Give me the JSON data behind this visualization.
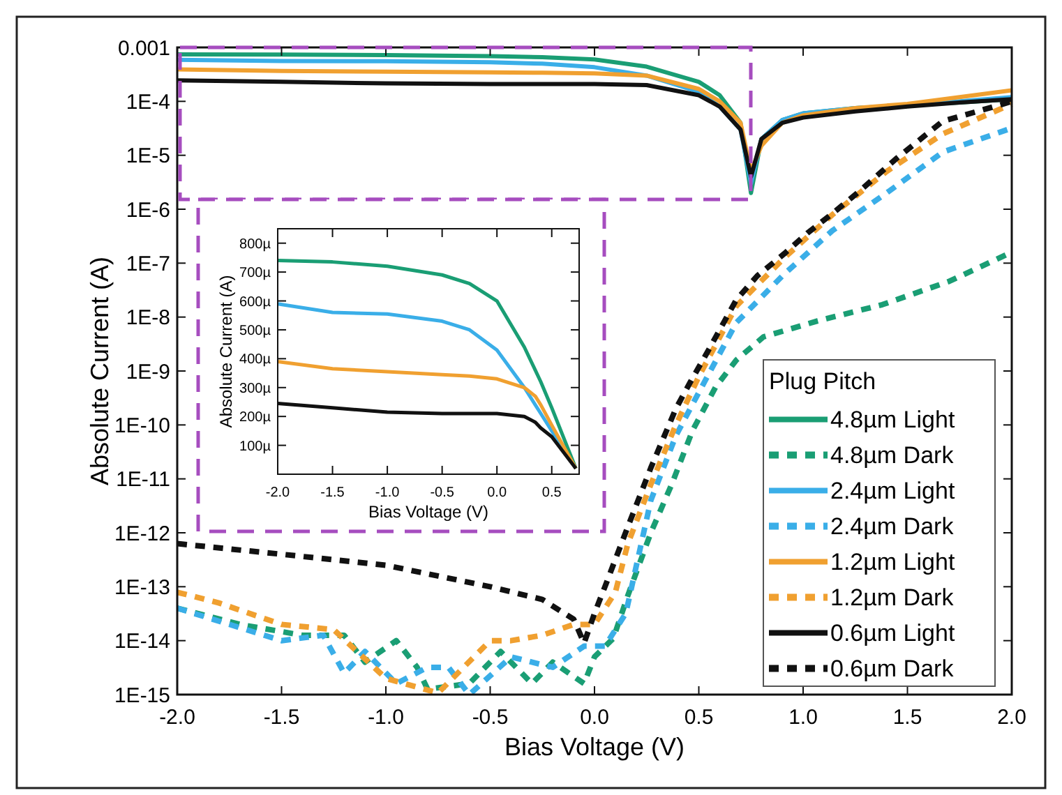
{
  "chart_data": [
    {
      "type": "line",
      "xlabel": "Bias Voltage (V)",
      "ylabel": "Absolute Current (A)",
      "log": "y",
      "legend": "bottom right",
      "legend_title": "Plug Pitch",
      "grid": false,
      "xlim": [
        -2,
        2
      ],
      "xticks": [
        {
          "value": -2,
          "label": "-2.0"
        },
        {
          "value": -1.5,
          "label": "-1.5"
        },
        {
          "value": -1,
          "label": "-1.0"
        },
        {
          "value": -0.5,
          "label": "-0.5"
        },
        {
          "value": 0,
          "label": "0.0"
        },
        {
          "value": 0.5,
          "label": "0.5"
        },
        {
          "value": 1,
          "label": "1.0"
        },
        {
          "value": 1.5,
          "label": "1.5"
        },
        {
          "value": 2,
          "label": "2.0"
        }
      ],
      "ylim": [
        1e-15,
        0.001
      ],
      "yticks": [
        {
          "value": 1e-15,
          "label": "1E-15"
        },
        {
          "value": 1e-14,
          "label": "1E-14"
        },
        {
          "value": 1e-13,
          "label": "1E-13"
        },
        {
          "value": 1e-12,
          "label": "1E-12"
        },
        {
          "value": 1e-11,
          "label": "1E-11"
        },
        {
          "value": 1e-10,
          "label": "1E-10"
        },
        {
          "value": 1e-09,
          "label": "1E-9"
        },
        {
          "value": 1e-08,
          "label": "1E-8"
        },
        {
          "value": 1e-07,
          "label": "1E-7"
        },
        {
          "value": 1e-06,
          "label": "1E-6"
        },
        {
          "value": 1e-05,
          "label": "1E-5"
        },
        {
          "value": 0.0001,
          "label": "1E-4"
        },
        0.001
      ],
      "series": [
        {
          "name": "4.8µm Light",
          "color": "#1a9e74",
          "line_style": "solid",
          "x": [
            -2,
            -1.5,
            -1,
            -0.5,
            -0.25,
            0,
            0.25,
            0.5,
            0.6,
            0.7,
            0.75,
            0.8,
            0.9,
            1,
            1.25,
            1.5,
            1.75,
            2
          ],
          "values": [
            0.00074,
            0.000735,
            0.00072,
            0.00069,
            0.00066,
            0.0006,
            0.00044,
            0.00023,
            0.00013,
            4e-05,
            2e-06,
            2e-05,
            4.5e-05,
            6e-05,
            7.5e-05,
            8.5e-05,
            9.5e-05,
            0.00011
          ]
        },
        {
          "name": "4.8µm Dark",
          "color": "#1a9e74",
          "line_style": "dashed",
          "x": [
            -2,
            -1.7,
            -1.4,
            -1.2,
            -1.1,
            -0.95,
            -0.85,
            -0.8,
            -0.6,
            -0.5,
            -0.45,
            -0.3,
            -0.2,
            -0.05,
            0,
            0.09,
            0.16,
            0.27,
            0.37,
            0.47,
            0.58,
            0.68,
            0.81,
            1.07,
            1.38,
            1.7,
            2
          ],
          "values": [
            4e-14,
            2e-14,
            1.26e-14,
            1.26e-14,
            4e-15,
            1e-14,
            3.2e-15,
            1.26e-15,
            1.6e-15,
            4e-15,
            6.3e-15,
            1.6e-15,
            4e-15,
            1.6e-15,
            5e-15,
            1.1e-14,
            6.9e-14,
            1e-12,
            7.9e-12,
            7.9e-11,
            5e-10,
            1.6e-09,
            4.3e-09,
            8.5e-09,
            1.7e-08,
            4.6e-08,
            1.6e-07
          ]
        },
        {
          "name": "2.4µm Light",
          "color": "#3aaee8",
          "line_style": "solid",
          "x": [
            -2,
            -1.5,
            -1,
            -0.5,
            -0.25,
            0,
            0.25,
            0.5,
            0.6,
            0.7,
            0.75,
            0.8,
            0.9,
            1,
            1.25,
            1.5,
            1.75,
            2
          ],
          "values": [
            0.00059,
            0.00056,
            0.000555,
            0.00053,
            0.0005,
            0.00043,
            0.0003,
            0.00015,
            8e-05,
            3e-05,
            3e-06,
            2e-05,
            4.5e-05,
            6e-05,
            7.5e-05,
            8.5e-05,
            0.0001,
            0.00012
          ]
        },
        {
          "name": "2.4µm Dark",
          "color": "#3aaee8",
          "line_style": "dashed",
          "x": [
            -2,
            -1.5,
            -1.3,
            -1.2,
            -1.1,
            -0.95,
            -0.8,
            -0.7,
            -0.6,
            -0.4,
            -0.2,
            -0.05,
            0.05,
            0.15,
            0.27,
            0.39,
            0.5,
            0.68,
            0.91,
            1.14,
            1.4,
            1.67,
            2
          ],
          "values": [
            4e-14,
            1e-14,
            1.26e-14,
            2.5e-15,
            6.3e-15,
            1.6e-15,
            3.2e-15,
            3.2e-15,
            1e-15,
            5e-15,
            3.2e-15,
            7.9e-15,
            7.9e-15,
            3.2e-14,
            4e-12,
            6.3e-11,
            4e-10,
            7.9e-09,
            6.3e-08,
            4e-07,
            2e-06,
            1.15e-05,
            3.2e-05
          ]
        },
        {
          "name": "1.2µm Light",
          "color": "#f0a030",
          "line_style": "solid",
          "x": [
            -2,
            -1.5,
            -1,
            -0.5,
            -0.25,
            0,
            0.25,
            0.5,
            0.6,
            0.7,
            0.75,
            0.8,
            0.9,
            1,
            1.25,
            1.5,
            1.75,
            2
          ],
          "values": [
            0.00039,
            0.000365,
            0.000355,
            0.000345,
            0.00034,
            0.00033,
            0.0003,
            0.00017,
            0.0001,
            4e-05,
            5e-06,
            1.5e-05,
            4e-05,
            5.5e-05,
            7.5e-05,
            9e-05,
            0.00012,
            0.00016
          ]
        },
        {
          "name": "1.2µm Dark",
          "color": "#f0a030",
          "line_style": "dashed",
          "x": [
            -2,
            -1.8,
            -1.5,
            -1.25,
            -1,
            -0.75,
            -0.5,
            -0.4,
            -0.25,
            -0.1,
            0,
            0.1,
            0.16,
            0.27,
            0.39,
            0.5,
            0.68,
            0.91,
            1.14,
            1.4,
            1.67,
            2
          ],
          "values": [
            7.9e-14,
            5e-14,
            2e-14,
            1.6e-14,
            2e-15,
            1.07e-15,
            1e-14,
            1e-14,
            1.26e-14,
            2e-14,
            2e-14,
            7.9e-14,
            6.3e-13,
            7.9e-12,
            1e-10,
            7.9e-10,
            1.6e-08,
            1.26e-07,
            7.9e-07,
            5e-06,
            2.5e-05,
            8.9e-05
          ]
        },
        {
          "name": "0.6µm Light",
          "color": "#111111",
          "line_style": "solid",
          "x": [
            -2,
            -1.5,
            -1,
            -0.5,
            -0.25,
            0,
            0.25,
            0.5,
            0.6,
            0.7,
            0.75,
            0.8,
            0.9,
            1,
            1.25,
            1.5,
            1.75,
            2
          ],
          "values": [
            0.000245,
            0.00023,
            0.000215,
            0.00021,
            0.00021,
            0.00021,
            0.0002,
            0.00013,
            8e-05,
            3e-05,
            4e-06,
            2e-05,
            4e-05,
            5e-05,
            6.5e-05,
            8e-05,
            9.5e-05,
            0.00011
          ]
        },
        {
          "name": "0.6µm Dark",
          "color": "#111111",
          "line_style": "dashed",
          "x": [
            -2,
            -1.5,
            -1,
            -0.5,
            -0.25,
            -0.1,
            -0.05,
            0,
            0.05,
            0.16,
            0.27,
            0.39,
            0.46,
            0.54,
            0.68,
            0.78,
            0.91,
            1.02,
            1.14,
            1.26,
            1.45,
            1.67,
            1.95,
            2
          ],
          "values": [
            6.3e-13,
            4e-13,
            2.5e-13,
            1e-13,
            5.8e-14,
            2.5e-14,
            9e-15,
            3.2e-14,
            1e-13,
            1.3e-12,
            1.6e-11,
            2e-10,
            6.3e-10,
            2.2e-09,
            2.1e-08,
            5.8e-08,
            1.5e-07,
            3.6e-07,
            8.3e-07,
            2e-06,
            8.9e-06,
            4.3e-05,
            8.7e-05,
            0.0001
          ]
        }
      ]
    },
    {
      "type": "line",
      "xlabel": "Bias Voltage (V)",
      "ylabel": "Absolute Current (A)",
      "grid": false,
      "xlim": [
        -2,
        0.75
      ],
      "xticks": [
        {
          "value": -2,
          "label": "-2.0"
        },
        {
          "value": -1.5,
          "label": "-1.5"
        },
        {
          "value": -1,
          "label": "-1.0"
        },
        {
          "value": -0.5,
          "label": "-0.5"
        },
        {
          "value": 0,
          "label": "0.0"
        },
        {
          "value": 0.5,
          "label": "0.5"
        }
      ],
      "ylim": [
        0,
        850
      ],
      "yticks": [
        {
          "value": 100,
          "label": "100µ"
        },
        {
          "value": 200,
          "label": "200µ"
        },
        {
          "value": 300,
          "label": "300µ"
        },
        {
          "value": 400,
          "label": "400µ"
        },
        {
          "value": 500,
          "label": "500µ"
        },
        {
          "value": 600,
          "label": "600µ"
        },
        {
          "value": 700,
          "label": "700µ"
        },
        {
          "value": 800,
          "label": "800µ"
        }
      ],
      "x": [
        -2,
        -1.5,
        -1,
        -0.5,
        -0.25,
        0,
        0.25,
        0.35,
        0.4,
        0.5,
        0.72
      ],
      "series": [
        {
          "color": "#1a9e74",
          "values": [
            740,
            735,
            720,
            690,
            660,
            600,
            440,
            360,
            320,
            230,
            20
          ]
        },
        {
          "color": "#3aaee8",
          "values": [
            590,
            560,
            555,
            530,
            500,
            430,
            300,
            240,
            210,
            150,
            20
          ]
        },
        {
          "color": "#f0a030",
          "values": [
            390,
            365,
            355,
            345,
            340,
            330,
            300,
            270,
            240,
            170,
            20
          ]
        },
        {
          "color": "#111111",
          "values": [
            245,
            230,
            215,
            210,
            210,
            210,
            200,
            180,
            160,
            130,
            20
          ]
        }
      ]
    }
  ]
}
